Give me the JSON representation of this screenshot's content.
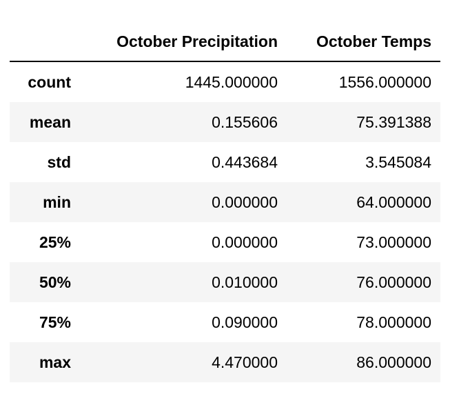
{
  "table": {
    "columns": [
      "",
      "October Precipitation",
      "October Temps"
    ],
    "rows": [
      {
        "label": "count",
        "values": [
          "1445.000000",
          "1556.000000"
        ]
      },
      {
        "label": "mean",
        "values": [
          "0.155606",
          "75.391388"
        ]
      },
      {
        "label": "std",
        "values": [
          "0.443684",
          "3.545084"
        ]
      },
      {
        "label": "min",
        "values": [
          "0.000000",
          "64.000000"
        ]
      },
      {
        "label": "25%",
        "values": [
          "0.000000",
          "73.000000"
        ]
      },
      {
        "label": "50%",
        "values": [
          "0.010000",
          "76.000000"
        ]
      },
      {
        "label": "75%",
        "values": [
          "0.090000",
          "78.000000"
        ]
      },
      {
        "label": "max",
        "values": [
          "4.470000",
          "86.000000"
        ]
      }
    ]
  },
  "colors": {
    "stripe": "#f5f5f5",
    "background": "#ffffff",
    "text": "#000000",
    "header_rule": "#000000"
  }
}
